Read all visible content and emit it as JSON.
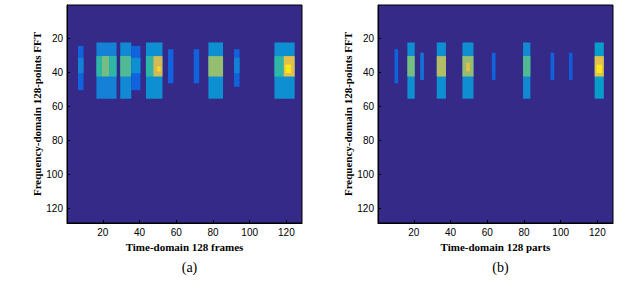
{
  "chart_data": [
    {
      "type": "heatmap",
      "title": "(a)",
      "x_label": "Time-domain 128 frames",
      "y_label": "Frequency-domain 128-points FFT",
      "xlim": [
        0.5,
        128.5
      ],
      "ylim": [
        0.5,
        128.5
      ],
      "xticks": [
        20,
        40,
        60,
        80,
        100,
        120
      ],
      "yticks": [
        20,
        40,
        60,
        80,
        100,
        120
      ],
      "zlim": [
        0,
        1
      ],
      "cells": [
        [
          6.5,
          9.5,
          24.5,
          50.5,
          0.15
        ],
        [
          6.5,
          9.5,
          31.5,
          40.5,
          0.25
        ],
        [
          16.5,
          27.5,
          22.5,
          55.5,
          0.25
        ],
        [
          16.5,
          19.5,
          30.5,
          42.5,
          0.5
        ],
        [
          19.5,
          23.5,
          30.5,
          42.5,
          0.6
        ],
        [
          23.5,
          27.5,
          30.5,
          42.5,
          0.5
        ],
        [
          29.5,
          35.5,
          22.5,
          55.5,
          0.28
        ],
        [
          29.5,
          35.5,
          30.5,
          42.5,
          0.55
        ],
        [
          35.5,
          40.5,
          24.5,
          50.5,
          0.15
        ],
        [
          35.5,
          40.5,
          31.5,
          40.5,
          0.3
        ],
        [
          43.5,
          52.5,
          22.5,
          55.5,
          0.3
        ],
        [
          43.5,
          47.5,
          30.5,
          42.5,
          0.5
        ],
        [
          47.5,
          52.5,
          30.5,
          42.5,
          0.75
        ],
        [
          49.5,
          51.5,
          36.5,
          39.5,
          0.9
        ],
        [
          55.5,
          58.5,
          26.5,
          46.5,
          0.15
        ],
        [
          69.5,
          72.5,
          26.5,
          46.5,
          0.15
        ],
        [
          77.5,
          85.5,
          22.5,
          55.5,
          0.3
        ],
        [
          77.5,
          85.5,
          30.5,
          42.5,
          0.65
        ],
        [
          91.5,
          94.5,
          26.5,
          48.5,
          0.15
        ],
        [
          91.5,
          94.5,
          31.5,
          40.5,
          0.25
        ],
        [
          113.5,
          124.5,
          22.5,
          55.5,
          0.3
        ],
        [
          113.5,
          118.5,
          30.5,
          42.5,
          0.5
        ],
        [
          118.5,
          124.5,
          30.5,
          42.5,
          0.8
        ],
        [
          119.5,
          122.5,
          35.5,
          40.5,
          0.95
        ]
      ]
    },
    {
      "type": "heatmap",
      "title": "(b)",
      "x_label": "Time-domain 128 parts",
      "y_label": "Frequency-domain 128-points FFT",
      "xlim": [
        0.5,
        128.5
      ],
      "ylim": [
        0.5,
        128.5
      ],
      "xticks": [
        20,
        40,
        60,
        80,
        100,
        120
      ],
      "yticks": [
        20,
        40,
        60,
        80,
        100,
        120
      ],
      "zlim": [
        0,
        1
      ],
      "cells": [
        [
          9.5,
          11.5,
          26.5,
          46.5,
          0.15
        ],
        [
          16.5,
          20.5,
          22.5,
          55.5,
          0.3
        ],
        [
          16.5,
          20.5,
          30.5,
          42.5,
          0.6
        ],
        [
          23.5,
          25.5,
          28.5,
          44.5,
          0.2
        ],
        [
          32.5,
          37.5,
          22.5,
          55.5,
          0.3
        ],
        [
          32.5,
          37.5,
          30.5,
          42.5,
          0.7
        ],
        [
          46.5,
          52.5,
          22.5,
          55.5,
          0.3
        ],
        [
          46.5,
          52.5,
          30.5,
          42.5,
          0.65
        ],
        [
          48.5,
          50.5,
          34.5,
          39.5,
          0.8
        ],
        [
          62.5,
          64.5,
          28.5,
          44.5,
          0.15
        ],
        [
          79.5,
          83.5,
          22.5,
          55.5,
          0.28
        ],
        [
          79.5,
          83.5,
          30.5,
          42.5,
          0.55
        ],
        [
          94.5,
          96.5,
          28.5,
          44.5,
          0.15
        ],
        [
          104.5,
          106.5,
          28.5,
          44.5,
          0.12
        ],
        [
          118.5,
          123.5,
          22.5,
          55.5,
          0.35
        ],
        [
          118.5,
          123.5,
          30.5,
          42.5,
          0.8
        ],
        [
          119.5,
          122.5,
          35.5,
          40.5,
          0.95
        ]
      ]
    }
  ]
}
